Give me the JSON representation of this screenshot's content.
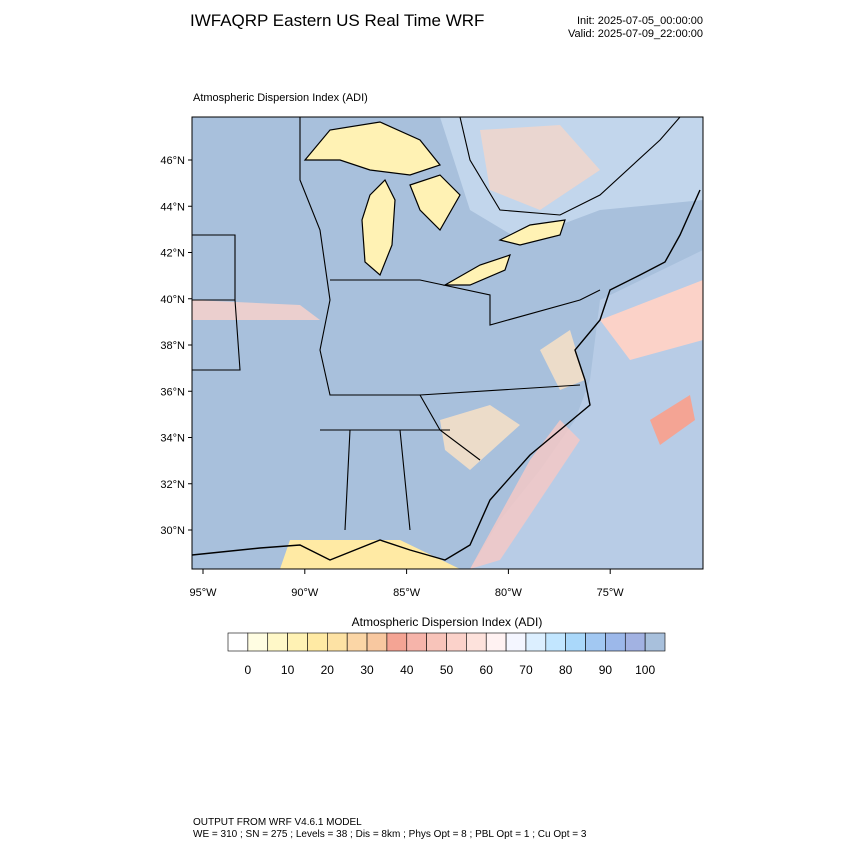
{
  "header": {
    "title": "IWFAQRP Eastern US Real Time WRF",
    "init": "Init: 2025-07-05_00:00:00",
    "valid": "Valid: 2025-07-09_22:00:00"
  },
  "map": {
    "title": "Atmospheric Dispersion Index   (ADI)",
    "lat_labels": [
      "46°N",
      "44°N",
      "42°N",
      "40°N",
      "38°N",
      "36°N",
      "34°N",
      "32°N",
      "30°N"
    ],
    "lon_labels": [
      "95°W",
      "90°W",
      "85°W",
      "80°W",
      "75°W"
    ]
  },
  "colorbar": {
    "title": "Atmospheric Dispersion Index  (ADI)",
    "colors": [
      "#ffffff",
      "#fffde2",
      "#fff8c8",
      "#fff2b4",
      "#ffeaa4",
      "#fde2a4",
      "#fbd6a6",
      "#f8c8a0",
      "#f4a494",
      "#f6b4aa",
      "#f8c4ba",
      "#fbd2ca",
      "#fde2dc",
      "#fff2f2",
      "#f4f6ff",
      "#dcefff",
      "#c2e6ff",
      "#aad8fa",
      "#a2c8f2",
      "#9cb8ea",
      "#a2b2e2",
      "#a8c0dc"
    ],
    "labels": [
      0,
      10,
      20,
      30,
      40,
      50,
      60,
      70,
      80,
      90,
      100
    ]
  },
  "footer": {
    "line1": "OUTPUT FROM WRF V4.6.1 MODEL",
    "line2": "WE = 310 ; SN = 275 ; Levels = 38 ; Dis = 8km ; Phys Opt = 8 ; PBL Opt = 1 ; Cu Opt = 3"
  }
}
